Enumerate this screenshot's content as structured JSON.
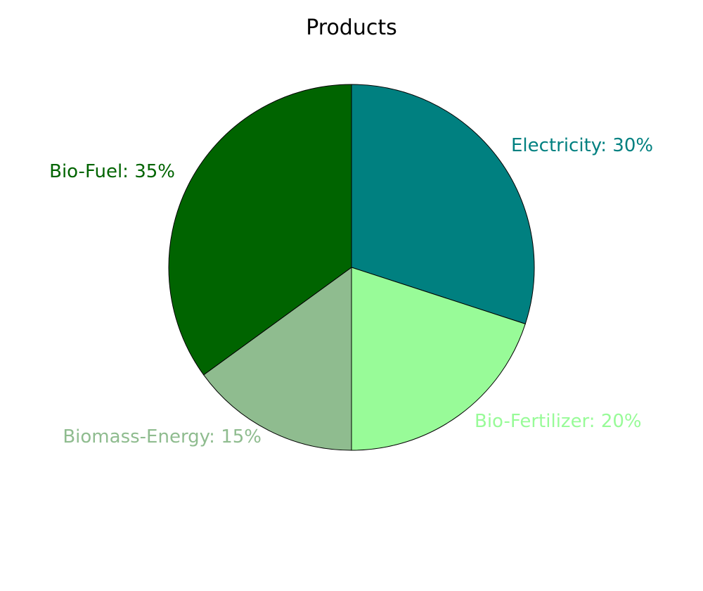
{
  "chart_data": {
    "type": "pie",
    "title": "Products",
    "slices": [
      {
        "label": "Electricity",
        "value": 30,
        "color": "#008080",
        "text": "Electricity: 30%"
      },
      {
        "label": "Bio-Fertilizer",
        "value": 20,
        "color": "#98FB98",
        "text": "Bio-Fertilizer: 20%"
      },
      {
        "label": "Biomass-Energy",
        "value": 15,
        "color": "#8FBC8F",
        "text": "Biomass-Energy: 15%"
      },
      {
        "label": "Bio-Fuel",
        "value": 35,
        "color": "#006400",
        "text": "Bio-Fuel: 35%"
      }
    ],
    "start_angle": "12 o'clock",
    "direction": "clockwise",
    "legend": "none",
    "label_color": "slice color"
  }
}
